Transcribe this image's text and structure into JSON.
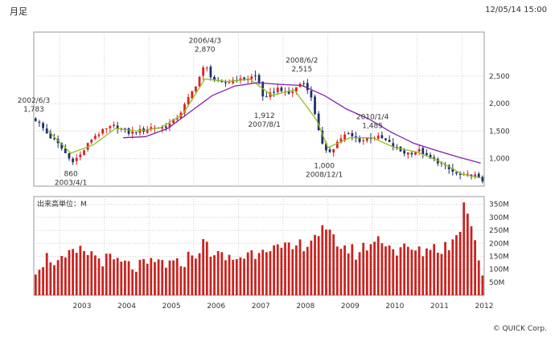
{
  "title": "月足",
  "timestamp": "12/05/14 15:00",
  "copyright": "© QUICK Corp.",
  "colors": {
    "up": "#e0201f",
    "down": "#1f2f6a",
    "ma_short": "#8fbf1f",
    "ma_long": "#8020b0",
    "volume": "#c8231f",
    "grid": "#cccccc",
    "frame": "#999999"
  },
  "chart_data": [
    {
      "type": "candlestick",
      "interval": "monthly",
      "y_ticks": [
        "2,500",
        "2,000",
        "1,500",
        "1,000"
      ],
      "y_tick_values": [
        2500,
        2000,
        1500,
        1000
      ],
      "ylim": [
        500,
        3300
      ],
      "x_ticks": [
        "2003",
        "2004",
        "2005",
        "2006",
        "2007",
        "2008",
        "2009",
        "2010",
        "2011",
        "2012"
      ],
      "x_start": 2002.42,
      "x_end": 2012.5,
      "annotations": [
        {
          "date": "2002/6/3",
          "value": "1,783",
          "x": 2002.42,
          "y": 1783
        },
        {
          "date": "2003/4/1",
          "value": "860",
          "x": 2003.25,
          "y": 860
        },
        {
          "date": "2006/4/3",
          "value": "2,870",
          "x": 2006.25,
          "y": 2870
        },
        {
          "date": "2007/8/1",
          "value": "1,912",
          "x": 2007.58,
          "y": 1912
        },
        {
          "date": "2008/6/2",
          "value": "2,515",
          "x": 2008.42,
          "y": 2515
        },
        {
          "date": "2008/12/1",
          "value": "1,000",
          "x": 2008.92,
          "y": 1000
        },
        {
          "date": "2010/1/4",
          "value": "1,485",
          "x": 2010.0,
          "y": 1485
        }
      ],
      "anchors": [
        [
          2002.42,
          1750
        ],
        [
          2002.58,
          1600
        ],
        [
          2002.75,
          1420
        ],
        [
          2002.92,
          1300
        ],
        [
          2003.08,
          1150
        ],
        [
          2003.25,
          960
        ],
        [
          2003.42,
          1020
        ],
        [
          2003.58,
          1200
        ],
        [
          2003.75,
          1400
        ],
        [
          2003.92,
          1480
        ],
        [
          2004.08,
          1550
        ],
        [
          2004.25,
          1600
        ],
        [
          2004.42,
          1520
        ],
        [
          2004.58,
          1460
        ],
        [
          2004.75,
          1500
        ],
        [
          2004.92,
          1520
        ],
        [
          2005.08,
          1580
        ],
        [
          2005.25,
          1560
        ],
        [
          2005.42,
          1600
        ],
        [
          2005.58,
          1700
        ],
        [
          2005.75,
          1900
        ],
        [
          2005.92,
          2150
        ],
        [
          2006.08,
          2400
        ],
        [
          2006.25,
          2700
        ],
        [
          2006.42,
          2450
        ],
        [
          2006.58,
          2350
        ],
        [
          2006.75,
          2380
        ],
        [
          2006.92,
          2450
        ],
        [
          2007.08,
          2420
        ],
        [
          2007.25,
          2480
        ],
        [
          2007.42,
          2500
        ],
        [
          2007.58,
          2050
        ],
        [
          2007.75,
          2200
        ],
        [
          2007.92,
          2300
        ],
        [
          2008.08,
          2150
        ],
        [
          2008.25,
          2250
        ],
        [
          2008.42,
          2400
        ],
        [
          2008.58,
          2250
        ],
        [
          2008.75,
          1700
        ],
        [
          2008.92,
          1100
        ],
        [
          2009.08,
          1150
        ],
        [
          2009.25,
          1350
        ],
        [
          2009.42,
          1450
        ],
        [
          2009.58,
          1380
        ],
        [
          2009.75,
          1320
        ],
        [
          2009.92,
          1380
        ],
        [
          2010.08,
          1400
        ],
        [
          2010.25,
          1350
        ],
        [
          2010.42,
          1250
        ],
        [
          2010.58,
          1150
        ],
        [
          2010.75,
          1100
        ],
        [
          2010.92,
          1120
        ],
        [
          2011.08,
          1150
        ],
        [
          2011.25,
          1000
        ],
        [
          2011.42,
          970
        ],
        [
          2011.58,
          880
        ],
        [
          2011.75,
          780
        ],
        [
          2011.92,
          700
        ],
        [
          2012.08,
          680
        ],
        [
          2012.25,
          720
        ],
        [
          2012.42,
          600
        ]
      ],
      "ma_short_anchors": [
        [
          2002.75,
          1500
        ],
        [
          2003.25,
          1100
        ],
        [
          2003.75,
          1250
        ],
        [
          2004.25,
          1550
        ],
        [
          2004.75,
          1500
        ],
        [
          2005.25,
          1560
        ],
        [
          2005.75,
          1800
        ],
        [
          2006.25,
          2450
        ],
        [
          2006.75,
          2400
        ],
        [
          2007.25,
          2450
        ],
        [
          2007.75,
          2150
        ],
        [
          2008.25,
          2250
        ],
        [
          2008.75,
          1700
        ],
        [
          2009.0,
          1200
        ],
        [
          2009.5,
          1380
        ],
        [
          2010.0,
          1380
        ],
        [
          2010.5,
          1200
        ],
        [
          2011.0,
          1120
        ],
        [
          2011.5,
          950
        ],
        [
          2012.0,
          720
        ],
        [
          2012.42,
          650
        ]
      ],
      "ma_long_anchors": [
        [
          2004.42,
          1380
        ],
        [
          2004.92,
          1400
        ],
        [
          2005.42,
          1550
        ],
        [
          2005.92,
          1850
        ],
        [
          2006.42,
          2150
        ],
        [
          2006.92,
          2320
        ],
        [
          2007.42,
          2380
        ],
        [
          2007.92,
          2350
        ],
        [
          2008.42,
          2330
        ],
        [
          2008.92,
          2150
        ],
        [
          2009.42,
          1900
        ],
        [
          2009.92,
          1720
        ],
        [
          2010.42,
          1480
        ],
        [
          2010.92,
          1280
        ],
        [
          2011.42,
          1150
        ],
        [
          2011.92,
          1030
        ],
        [
          2012.42,
          920
        ]
      ]
    },
    {
      "type": "bar",
      "title": "出来高単位：M",
      "y_ticks": [
        "350M",
        "300M",
        "250M",
        "200M",
        "150M",
        "100M",
        "50M"
      ],
      "y_tick_values": [
        350,
        300,
        250,
        200,
        150,
        100,
        50
      ],
      "ylim": [
        0,
        380
      ],
      "x_start": 2002.42,
      "x_end": 2012.5,
      "volume_anchors": [
        [
          2002.42,
          100
        ],
        [
          2002.75,
          150
        ],
        [
          2003.0,
          120
        ],
        [
          2003.33,
          160
        ],
        [
          2003.58,
          170
        ],
        [
          2003.92,
          140
        ],
        [
          2004.25,
          130
        ],
        [
          2004.58,
          110
        ],
        [
          2004.92,
          110
        ],
        [
          2005.25,
          130
        ],
        [
          2005.58,
          110
        ],
        [
          2005.83,
          140
        ],
        [
          2006.08,
          170
        ],
        [
          2006.25,
          200
        ],
        [
          2006.5,
          150
        ],
        [
          2006.83,
          140
        ],
        [
          2007.08,
          150
        ],
        [
          2007.42,
          170
        ],
        [
          2007.58,
          200
        ],
        [
          2007.92,
          170
        ],
        [
          2008.25,
          180
        ],
        [
          2008.58,
          210
        ],
        [
          2008.83,
          250
        ],
        [
          2009.08,
          220
        ],
        [
          2009.42,
          180
        ],
        [
          2009.67,
          160
        ],
        [
          2009.92,
          200
        ],
        [
          2010.25,
          220
        ],
        [
          2010.5,
          170
        ],
        [
          2010.83,
          180
        ],
        [
          2011.08,
          160
        ],
        [
          2011.25,
          190
        ],
        [
          2011.5,
          180
        ],
        [
          2011.75,
          200
        ],
        [
          2011.92,
          230
        ],
        [
          2012.08,
          370
        ],
        [
          2012.25,
          250
        ],
        [
          2012.33,
          200
        ],
        [
          2012.42,
          100
        ]
      ]
    }
  ]
}
